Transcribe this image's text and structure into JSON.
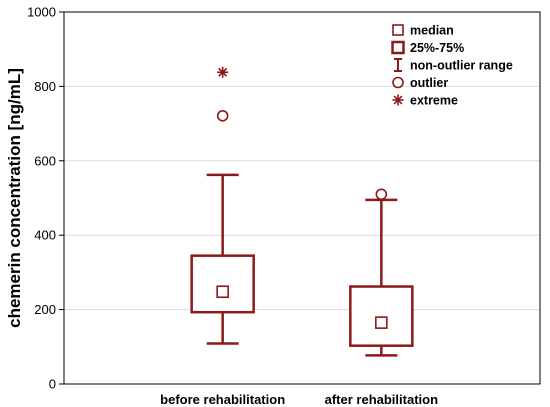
{
  "chart_data": {
    "type": "boxplot",
    "ylabel": "chemerin concentration [ng/mL]",
    "ylim": [
      0,
      1000
    ],
    "yticks": [
      0,
      200,
      400,
      600,
      800,
      1000
    ],
    "grid": true,
    "legend_position": "top-right",
    "accent_color": "#8b1a1a",
    "categories": [
      "before rehabilitation",
      "after rehabilitation"
    ],
    "boxes": [
      {
        "category": "before rehabilitation",
        "median": 248,
        "q1": 193,
        "q3": 345,
        "whisker_low": 109,
        "whisker_high": 562,
        "outliers": [
          721
        ],
        "extremes": [
          838
        ]
      },
      {
        "category": "after rehabilitation",
        "median": 165,
        "q1": 103,
        "q3": 262,
        "whisker_low": 77,
        "whisker_high": 495,
        "outliers": [
          510
        ],
        "extremes": []
      }
    ],
    "legend": [
      {
        "symbol": "median-square",
        "label": "median"
      },
      {
        "symbol": "box",
        "label": "25%-75%"
      },
      {
        "symbol": "whisker",
        "label": "non-outlier range"
      },
      {
        "symbol": "circle",
        "label": "outlier"
      },
      {
        "symbol": "asterisk",
        "label": "extreme"
      }
    ]
  }
}
